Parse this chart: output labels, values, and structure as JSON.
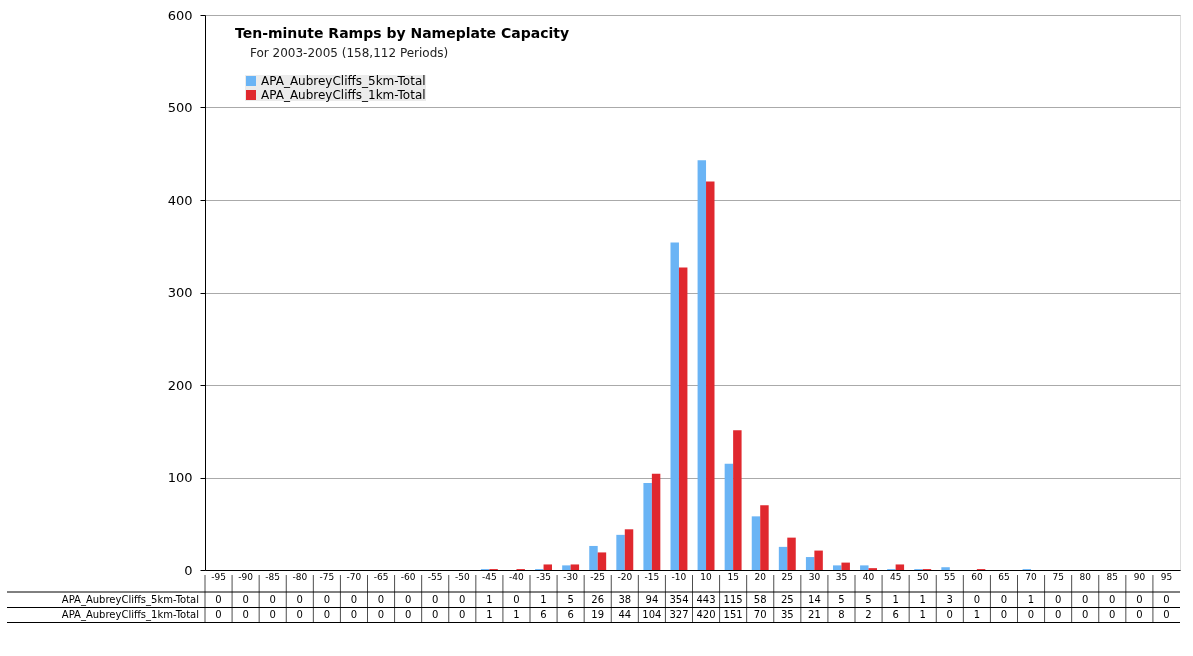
{
  "chart_data": {
    "type": "bar",
    "title": "Ten-minute Ramps by Nameplate Capacity",
    "subtitle": "For 2003-2005 (158,112 Periods)",
    "categories": [
      "-95",
      "-90",
      "-85",
      "-80",
      "-75",
      "-70",
      "-65",
      "-60",
      "-55",
      "-50",
      "-45",
      "-40",
      "-35",
      "-30",
      "-25",
      "-20",
      "-15",
      "-10",
      "10",
      "15",
      "20",
      "25",
      "30",
      "35",
      "40",
      "45",
      "50",
      "55",
      "60",
      "65",
      "70",
      "75",
      "80",
      "85",
      "90",
      "95"
    ],
    "series": [
      {
        "name": "APA_AubreyCliffs_5km-Total",
        "color": "#6ab4f5",
        "values": [
          0,
          0,
          0,
          0,
          0,
          0,
          0,
          0,
          0,
          0,
          1,
          0,
          1,
          5,
          26,
          38,
          94,
          354,
          443,
          115,
          58,
          25,
          14,
          5,
          5,
          1,
          1,
          3,
          0,
          0,
          1,
          0,
          0,
          0,
          0,
          0
        ]
      },
      {
        "name": "APA_AubreyCliffs_1km-Total",
        "color": "#e0282e",
        "values": [
          0,
          0,
          0,
          0,
          0,
          0,
          0,
          0,
          0,
          0,
          1,
          1,
          6,
          6,
          19,
          44,
          104,
          327,
          420,
          151,
          70,
          35,
          21,
          8,
          2,
          6,
          1,
          0,
          1,
          0,
          0,
          0,
          0,
          0,
          0,
          0
        ]
      }
    ],
    "ylim": [
      0,
      600
    ],
    "yticks": [
      0,
      100,
      200,
      300,
      400,
      500,
      600
    ],
    "grid": "y",
    "legend": "top left",
    "data_labels": true
  }
}
